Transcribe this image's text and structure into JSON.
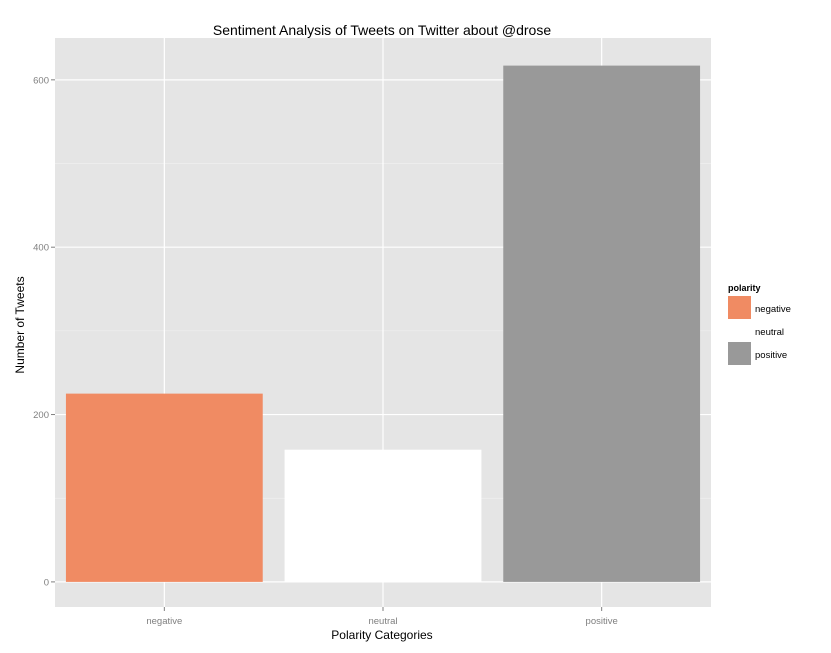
{
  "chart_data": {
    "type": "bar",
    "title": "Sentiment Analysis of Tweets on Twitter about @drose",
    "xlabel": "Polarity Categories",
    "ylabel": "Number of Tweets",
    "categories": [
      "negative",
      "neutral",
      "positive"
    ],
    "values": [
      225,
      158,
      617
    ],
    "colors": [
      "#f08b63",
      "#ffffff",
      "#999999"
    ],
    "ylim": [
      -30,
      650
    ],
    "yticks": [
      0,
      200,
      400,
      600
    ],
    "ytick_labels": [
      "0",
      "200",
      "400",
      "600"
    ],
    "grid": true,
    "background": "#e5e5e5",
    "legend": {
      "title": "polarity",
      "position": "right",
      "entries": [
        {
          "label": "negative",
          "color": "#f08b63"
        },
        {
          "label": "neutral",
          "color": "#ffffff"
        },
        {
          "label": "positive",
          "color": "#999999"
        }
      ]
    }
  }
}
